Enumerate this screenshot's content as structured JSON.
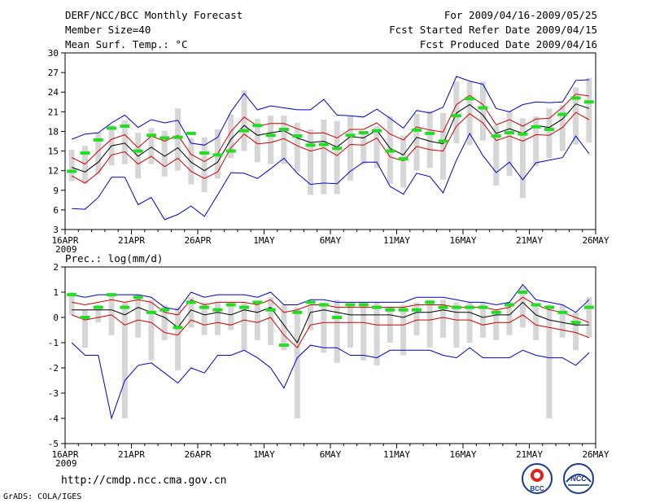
{
  "header": {
    "title": "DERF/NCC/BCC Monthly Forecast",
    "member_size": "Member Size=40",
    "variable": "Mean Surf. Temp.: °C",
    "period": "For 2009/04/16-2009/05/25",
    "refer_date": "Fcst Started Refer Date 2009/04/15",
    "produced_date": "Fcst Produced Date 2009/04/16"
  },
  "footer": {
    "url": "http://cmdp.ncc.cma.gov.cn",
    "credit": "GrADS: COLA/IGES",
    "logo_left": "BCC",
    "logo_right": "NCC"
  },
  "colors": {
    "ensemble_envelope": "#0000cc",
    "spread_band": "#cc0000",
    "ensemble_mean": "#000000",
    "box": "#d6d6d6",
    "median": "#22dd22"
  },
  "chart_data": [
    {
      "type": "line",
      "title": "Mean Surf. Temp.: °C",
      "days": [
        "04/16",
        "04/17",
        "04/18",
        "04/19",
        "04/20",
        "04/21",
        "04/22",
        "04/23",
        "04/24",
        "04/25",
        "04/26",
        "04/27",
        "04/28",
        "04/29",
        "04/30",
        "05/01",
        "05/02",
        "05/03",
        "05/04",
        "05/05",
        "05/06",
        "05/07",
        "05/08",
        "05/09",
        "05/10",
        "05/11",
        "05/12",
        "05/13",
        "05/14",
        "05/15",
        "05/16",
        "05/17",
        "05/18",
        "05/19",
        "05/20",
        "05/21",
        "05/22",
        "05/23",
        "05/24",
        "05/25"
      ],
      "xticks": [
        "16APR",
        "21APR",
        "26APR",
        "1MAY",
        "6MAY",
        "11MAY",
        "16MAY",
        "21MAY",
        "26MAY"
      ],
      "xsub": "2009",
      "ylim": [
        3,
        30
      ],
      "yticks": [
        3,
        6,
        9,
        12,
        15,
        18,
        21,
        24,
        27,
        30
      ],
      "series": [
        {
          "name": "max",
          "values": [
            16.8,
            17.6,
            17.8,
            19.3,
            20.5,
            18.6,
            19.8,
            19.3,
            19.7,
            16.2,
            15.9,
            17.1,
            21.0,
            23.8,
            21.3,
            21.9,
            21.6,
            21.3,
            21.3,
            22.9,
            20.5,
            20.4,
            20.2,
            21.4,
            20.0,
            18.5,
            21.2,
            20.8,
            21.7,
            26.4,
            25.7,
            25.2,
            21.5,
            21.0,
            22.1,
            22.5,
            22.4,
            22.5,
            25.8,
            25.9
          ]
        },
        {
          "name": "upper",
          "values": [
            14.0,
            13.0,
            15.0,
            16.8,
            17.5,
            15.5,
            17.3,
            16.5,
            17.4,
            14.5,
            13.4,
            14.6,
            18.0,
            20.2,
            18.8,
            19.2,
            19.2,
            18.4,
            17.7,
            17.8,
            17.0,
            18.3,
            18.3,
            19.3,
            17.6,
            16.7,
            18.7,
            18.2,
            17.9,
            22.1,
            23.5,
            22.1,
            19.0,
            19.8,
            18.8,
            19.9,
            20.0,
            21.7,
            23.7,
            23.4
          ]
        },
        {
          "name": "mean",
          "values": [
            12.5,
            11.8,
            13.3,
            15.8,
            16.2,
            14.2,
            15.6,
            14.2,
            15.5,
            13.3,
            12.0,
            13.3,
            16.8,
            18.9,
            17.4,
            17.8,
            18.1,
            17.0,
            16.3,
            16.5,
            15.6,
            17.2,
            17.0,
            18.2,
            15.4,
            14.4,
            17.1,
            16.5,
            16.1,
            20.8,
            22.1,
            20.5,
            17.7,
            18.4,
            17.7,
            18.9,
            18.6,
            19.9,
            22.2,
            21.5
          ]
        },
        {
          "name": "lower",
          "values": [
            11.2,
            10.1,
            11.7,
            14.4,
            14.9,
            13.0,
            14.2,
            12.6,
            13.9,
            11.9,
            10.8,
            11.8,
            15.5,
            17.6,
            16.1,
            16.3,
            16.9,
            15.8,
            15.0,
            15.5,
            14.3,
            16.0,
            15.9,
            17.0,
            14.1,
            13.5,
            15.7,
            15.2,
            15.0,
            18.8,
            20.7,
            19.3,
            16.6,
            17.3,
            16.5,
            17.5,
            17.4,
            18.6,
            20.9,
            19.8
          ]
        },
        {
          "name": "min",
          "values": [
            6.2,
            6.1,
            7.9,
            11.0,
            11.0,
            6.8,
            7.9,
            4.5,
            5.3,
            6.6,
            5.0,
            8.3,
            11.7,
            11.6,
            10.8,
            12.3,
            13.9,
            11.6,
            9.9,
            10.1,
            10.0,
            11.9,
            13.3,
            13.3,
            9.6,
            8.4,
            11.6,
            11.1,
            8.6,
            13.6,
            17.7,
            14.3,
            11.7,
            13.3,
            10.6,
            13.2,
            13.6,
            14.0,
            17.3,
            14.6
          ]
        }
      ],
      "box_low": [
        10.4,
        10.0,
        11.5,
        12.8,
        13.0,
        10.8,
        13.0,
        11.1,
        12.0,
        9.9,
        8.7,
        10.8,
        13.9,
        15.0,
        13.3,
        13.0,
        13.0,
        11.8,
        8.3,
        8.4,
        8.4,
        10.5,
        13.0,
        12.4,
        10.0,
        9.4,
        12.0,
        12.4,
        10.6,
        16.2,
        15.9,
        16.6,
        9.7,
        11.2,
        7.8,
        12.7,
        13.9,
        15.0,
        16.0,
        16.3
      ],
      "box_high": [
        15.2,
        15.8,
        17.8,
        19.0,
        19.7,
        17.8,
        18.5,
        18.1,
        21.5,
        17.0,
        17.1,
        18.3,
        20.6,
        24.3,
        19.9,
        20.4,
        20.4,
        19.3,
        18.3,
        19.8,
        19.6,
        20.3,
        18.0,
        18.8,
        20.3,
        17.4,
        20.7,
        21.2,
        20.8,
        25.6,
        25.6,
        25.6,
        18.9,
        21.1,
        20.0,
        20.3,
        21.5,
        22.0,
        24.7,
        26.2
      ],
      "median": [
        11.9,
        14.7,
        16.7,
        18.5,
        18.8,
        15.0,
        17.4,
        17.0,
        17.1,
        17.7,
        14.7,
        14.4,
        15.0,
        18.1,
        18.9,
        17.4,
        18.3,
        17.3,
        15.9,
        16.0,
        15.4,
        17.4,
        17.8,
        18.1,
        15.0,
        13.8,
        18.2,
        17.7,
        16.5,
        20.4,
        23.0,
        21.6,
        17.3,
        17.8,
        17.6,
        18.7,
        18.3,
        20.6,
        23.1,
        22.5
      ]
    },
    {
      "type": "line",
      "title": "Prec.: log(mm/d)",
      "days": [
        "04/16",
        "04/17",
        "04/18",
        "04/19",
        "04/20",
        "04/21",
        "04/22",
        "04/23",
        "04/24",
        "04/25",
        "04/26",
        "04/27",
        "04/28",
        "04/29",
        "04/30",
        "05/01",
        "05/02",
        "05/03",
        "05/04",
        "05/05",
        "05/06",
        "05/07",
        "05/08",
        "05/09",
        "05/10",
        "05/11",
        "05/12",
        "05/13",
        "05/14",
        "05/15",
        "05/16",
        "05/17",
        "05/18",
        "05/19",
        "05/20",
        "05/21",
        "05/22",
        "05/23",
        "05/24",
        "05/25"
      ],
      "xticks": [
        "16APR",
        "21APR",
        "26APR",
        "1MAY",
        "6MAY",
        "11MAY",
        "16MAY",
        "21MAY",
        "26MAY"
      ],
      "xsub": "2009",
      "ylim": [
        -5,
        2
      ],
      "yticks": [
        -5,
        -4,
        -3,
        -2,
        -1,
        0,
        1,
        2
      ],
      "series": [
        {
          "name": "max",
          "values": [
            0.9,
            0.8,
            0.9,
            0.9,
            0.9,
            0.9,
            0.8,
            0.4,
            0.3,
            1.0,
            0.8,
            0.9,
            0.9,
            0.9,
            0.8,
            1.0,
            0.5,
            0.5,
            0.7,
            0.7,
            0.6,
            0.6,
            0.6,
            0.6,
            0.6,
            0.6,
            0.8,
            0.8,
            0.8,
            0.7,
            0.6,
            0.6,
            0.5,
            0.6,
            1.3,
            0.7,
            0.6,
            0.5,
            0.2,
            0.7
          ]
        },
        {
          "name": "upper",
          "values": [
            0.6,
            0.5,
            0.6,
            0.7,
            0.6,
            0.7,
            0.6,
            0.2,
            0.1,
            0.7,
            0.5,
            0.6,
            0.6,
            0.6,
            0.5,
            0.7,
            0.2,
            0.3,
            0.5,
            0.5,
            0.4,
            0.4,
            0.4,
            0.4,
            0.4,
            0.4,
            0.5,
            0.5,
            0.5,
            0.4,
            0.4,
            0.4,
            0.3,
            0.4,
            0.8,
            0.5,
            0.3,
            0.2,
            0.0,
            -0.2
          ]
        },
        {
          "name": "mean",
          "values": [
            0.4,
            0.3,
            0.4,
            0.4,
            0.1,
            0.4,
            0.2,
            -0.2,
            -0.4,
            0.3,
            0.1,
            0.2,
            0.1,
            0.3,
            0.2,
            0.3,
            -0.3,
            -1.1,
            0.2,
            0.3,
            0.2,
            0.2,
            0.2,
            0.1,
            0.1,
            0.0,
            0.2,
            0.2,
            0.3,
            0.2,
            0.2,
            0.0,
            0.1,
            0.1,
            0.6,
            0.1,
            -0.1,
            -0.2,
            -0.3,
            -0.3
          ]
        },
        {
          "name": "lower",
          "values": [
            0.1,
            -0.1,
            0.0,
            0.1,
            -0.3,
            -0.1,
            -0.2,
            -0.6,
            -0.7,
            -0.1,
            -0.3,
            -0.2,
            -0.3,
            -0.1,
            -0.2,
            0.0,
            -0.7,
            -1.2,
            -0.3,
            -0.2,
            -0.2,
            -0.2,
            -0.2,
            -0.3,
            -0.3,
            -0.3,
            -0.1,
            -0.1,
            0.0,
            -0.1,
            -0.1,
            -0.3,
            -0.2,
            -0.2,
            0.1,
            -0.3,
            -0.4,
            -0.5,
            -0.6,
            -0.8
          ]
        },
        {
          "name": "min",
          "values": [
            -1.0,
            -1.5,
            -1.5,
            -4.0,
            -2.5,
            -1.9,
            -1.8,
            -2.2,
            -2.6,
            -2.0,
            -2.2,
            -1.5,
            -1.5,
            -1.3,
            -1.6,
            -2.0,
            -2.8,
            -1.6,
            -1.1,
            -1.2,
            -1.2,
            -1.5,
            -1.5,
            -1.6,
            -1.3,
            -1.3,
            -1.3,
            -1.3,
            -1.5,
            -1.6,
            -1.2,
            -1.6,
            -1.6,
            -1.6,
            -1.3,
            -1.5,
            -1.6,
            -1.6,
            -1.9,
            -1.4
          ]
        },
        {
          "name": "mean_black",
          "values": [
            0.3,
            0.3,
            0.3,
            0.3,
            0.1,
            0.4,
            0.2,
            0.0,
            -0.4,
            0.3,
            0.1,
            0.2,
            0.1,
            0.3,
            0.2,
            0.4,
            -0.3,
            -1.0,
            0.2,
            0.3,
            0.2,
            0.1,
            0.1,
            0.1,
            0.1,
            0.0,
            0.2,
            0.2,
            0.3,
            0.2,
            0.2,
            0.0,
            0.1,
            0.1,
            0.6,
            0.1,
            -0.1,
            -0.2,
            -0.3,
            -0.3
          ]
        }
      ],
      "box_low": [
        0.1,
        -1.2,
        -0.2,
        -0.7,
        -4.0,
        -0.8,
        -1.7,
        -0.9,
        -2.1,
        -0.4,
        -0.7,
        -0.7,
        -0.5,
        -1.3,
        -0.9,
        -1.1,
        -1.3,
        -4.0,
        -0.5,
        -1.4,
        -1.8,
        -1.2,
        -1.7,
        -1.9,
        -1.0,
        -1.5,
        -0.7,
        -1.2,
        -0.8,
        -1.2,
        -1.0,
        -0.8,
        -0.9,
        -0.7,
        -0.4,
        -0.9,
        -4.0,
        -0.8,
        -1.3,
        -0.8
      ],
      "box_high": [
        1.0,
        0.3,
        0.5,
        0.9,
        0.6,
        0.9,
        0.7,
        0.5,
        0.4,
        0.8,
        0.6,
        0.6,
        0.6,
        0.6,
        0.5,
        0.8,
        0.5,
        0.4,
        0.5,
        0.6,
        0.7,
        0.5,
        0.6,
        0.6,
        0.4,
        0.5,
        0.6,
        0.7,
        0.7,
        0.6,
        0.6,
        0.6,
        0.3,
        0.6,
        1.2,
        0.5,
        0.5,
        0.5,
        0.2,
        0.8
      ],
      "median": [
        0.9,
        0.0,
        0.4,
        0.9,
        0.4,
        0.8,
        0.2,
        0.3,
        -0.4,
        0.6,
        0.4,
        0.3,
        0.5,
        0.4,
        0.6,
        0.3,
        -1.1,
        0.2,
        0.6,
        0.5,
        0.0,
        0.5,
        0.5,
        0.4,
        0.3,
        0.3,
        0.3,
        0.6,
        0.4,
        0.4,
        0.4,
        0.4,
        0.2,
        0.5,
        1.0,
        0.5,
        0.4,
        0.2,
        -0.2,
        0.4
      ]
    }
  ]
}
